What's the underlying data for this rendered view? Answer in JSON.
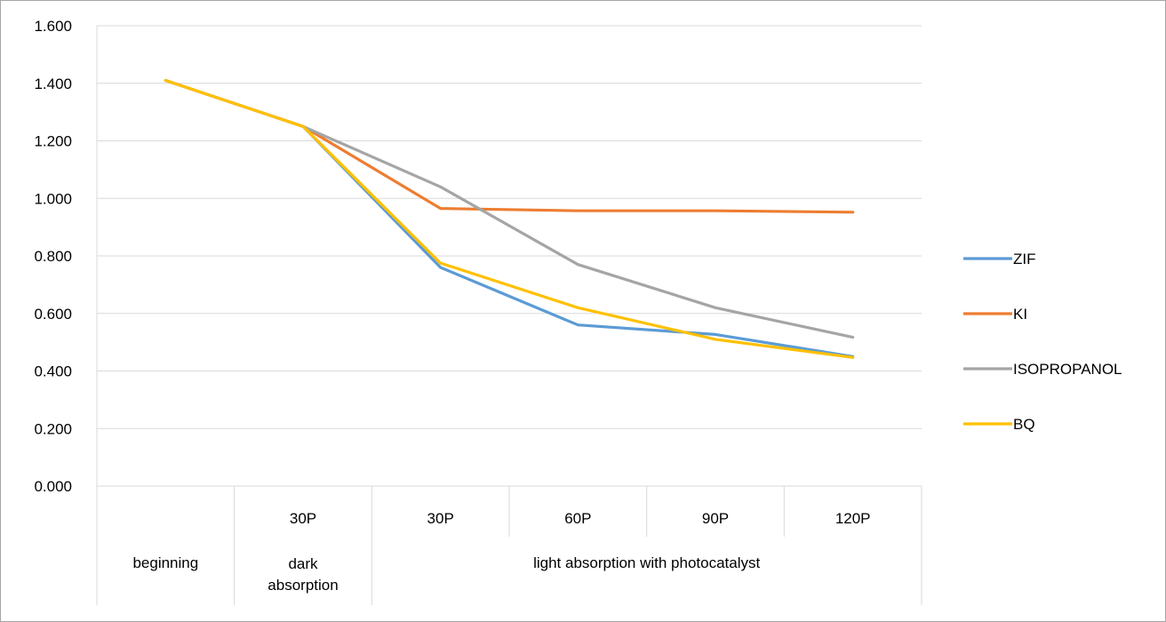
{
  "chart_data": {
    "type": "line",
    "categories": [
      "",
      "30P",
      "30P",
      "60P",
      "90P",
      "120P"
    ],
    "category_groups": [
      {
        "label": "beginning",
        "span": 1
      },
      {
        "label": "dark absorption",
        "lines": [
          "dark",
          "absorption"
        ],
        "span": 1
      },
      {
        "label": "light absorption with photocatalyst",
        "span": 4
      }
    ],
    "series": [
      {
        "name": "ZIF",
        "color": "#5b9bd5",
        "values": [
          1.41,
          1.25,
          0.76,
          0.56,
          0.527,
          0.45
        ]
      },
      {
        "name": "KI",
        "color": "#ed7d31",
        "values": [
          1.41,
          1.25,
          0.965,
          0.957,
          0.957,
          0.952
        ]
      },
      {
        "name": "ISOPROPANOL",
        "color": "#a5a5a5",
        "values": [
          1.41,
          1.25,
          1.04,
          0.77,
          0.62,
          0.517
        ]
      },
      {
        "name": "BQ",
        "color": "#ffc000",
        "values": [
          1.41,
          1.25,
          0.775,
          0.62,
          0.51,
          0.447
        ]
      }
    ],
    "ylim": [
      0,
      1.6
    ],
    "ytick_labels": [
      "0.000",
      "0.200",
      "0.400",
      "0.600",
      "0.800",
      "1.000",
      "1.200",
      "1.400",
      "1.600"
    ],
    "grid": true,
    "legend": "right",
    "title": "",
    "xlabel": "",
    "ylabel": ""
  }
}
